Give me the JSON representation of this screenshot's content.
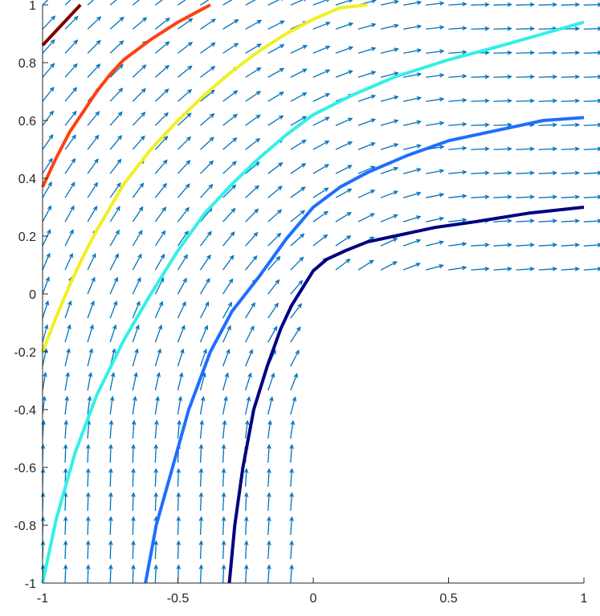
{
  "chart_data": {
    "type": "line",
    "title": "",
    "xlabel": "",
    "ylabel": "",
    "xlim": [
      -1,
      1
    ],
    "ylim": [
      -1,
      1
    ],
    "grid": false,
    "x_ticks": [
      "-1",
      "-0.5",
      "0",
      "0.5",
      "1"
    ],
    "y_ticks": [
      "-1",
      "-0.8",
      "-0.6",
      "-0.4",
      "-0.2",
      "0",
      "0.2",
      "0.4",
      "0.6",
      "0.8",
      "1"
    ],
    "quiver": {
      "color": "#0072BD",
      "x_start": -1.0,
      "x_step": 0.0833,
      "columns": 25,
      "y_start": -1.0,
      "y_step": 0.0833,
      "rows": 25,
      "cutoff_x": 0.0,
      "cutoff_y": 0.0,
      "note": "vector field; arrows omitted in the region x>-0.03, y<0.03"
    },
    "series": [
      {
        "color": "#000080",
        "x": [
          -0.31,
          -0.29,
          -0.26,
          -0.22,
          -0.17,
          -0.12,
          -0.08,
          -0.04,
          0.0,
          0.05,
          0.12,
          0.2,
          0.3,
          0.45,
          0.6,
          0.8,
          1.0
        ],
        "y": [
          -1.0,
          -0.8,
          -0.6,
          -0.4,
          -0.25,
          -0.12,
          -0.04,
          0.02,
          0.08,
          0.12,
          0.15,
          0.18,
          0.2,
          0.23,
          0.25,
          0.28,
          0.3
        ]
      },
      {
        "color": "#1E6EFF",
        "x": [
          -0.62,
          -0.58,
          -0.52,
          -0.46,
          -0.38,
          -0.3,
          -0.2,
          -0.1,
          0.0,
          0.1,
          0.2,
          0.35,
          0.5,
          0.7,
          0.85,
          1.0
        ],
        "y": [
          -1.0,
          -0.8,
          -0.6,
          -0.4,
          -0.2,
          -0.06,
          0.06,
          0.19,
          0.3,
          0.37,
          0.42,
          0.48,
          0.53,
          0.57,
          0.6,
          0.61
        ]
      },
      {
        "color": "#32F0E6",
        "x": [
          -1.0,
          -0.95,
          -0.88,
          -0.8,
          -0.7,
          -0.6,
          -0.5,
          -0.4,
          -0.3,
          -0.2,
          -0.1,
          0.0,
          0.15,
          0.3,
          0.5,
          0.7,
          0.85,
          1.0
        ],
        "y": [
          -1.0,
          -0.78,
          -0.55,
          -0.35,
          -0.16,
          0.0,
          0.15,
          0.28,
          0.38,
          0.47,
          0.55,
          0.62,
          0.69,
          0.75,
          0.81,
          0.86,
          0.9,
          0.94
        ]
      },
      {
        "color": "#F0F020",
        "x": [
          -1.0,
          -0.95,
          -0.9,
          -0.85,
          -0.8,
          -0.75,
          -0.7,
          -0.6,
          -0.5,
          -0.4,
          -0.3,
          -0.2,
          -0.1,
          0.0,
          0.1,
          0.2
        ],
        "y": [
          -0.2,
          -0.08,
          0.03,
          0.13,
          0.22,
          0.3,
          0.38,
          0.5,
          0.6,
          0.69,
          0.77,
          0.84,
          0.9,
          0.95,
          0.99,
          1.0
        ]
      },
      {
        "color": "#FF4010",
        "x": [
          -1.0,
          -0.95,
          -0.9,
          -0.85,
          -0.8,
          -0.75,
          -0.7,
          -0.6,
          -0.5,
          -0.44,
          -0.38
        ],
        "y": [
          0.37,
          0.47,
          0.56,
          0.63,
          0.7,
          0.76,
          0.81,
          0.88,
          0.94,
          0.97,
          1.0
        ]
      },
      {
        "color": "#800000",
        "x": [
          -1.0,
          -0.95,
          -0.9,
          -0.86
        ],
        "y": [
          0.86,
          0.91,
          0.96,
          1.0
        ]
      }
    ]
  }
}
